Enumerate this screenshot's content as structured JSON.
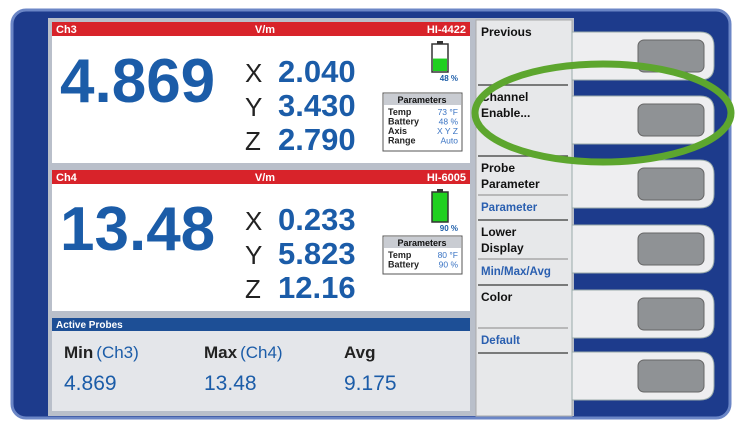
{
  "channels": [
    {
      "name": "Ch3",
      "unit": "V/m",
      "probe": "HI-4422",
      "main": "4.869",
      "axes": [
        {
          "label": "X",
          "value": "2.040"
        },
        {
          "label": "Y",
          "value": "3.430"
        },
        {
          "label": "Z",
          "value": "2.790"
        }
      ],
      "battery": "48 %",
      "parameters": {
        "title": "Parameters",
        "rows": [
          [
            "Temp",
            "73 °F"
          ],
          [
            "Battery",
            "48 %"
          ],
          [
            "Axis",
            "X Y Z"
          ],
          [
            "Range",
            "Auto"
          ]
        ]
      }
    },
    {
      "name": "Ch4",
      "unit": "V/m",
      "probe": "HI-6005",
      "main": "13.48",
      "axes": [
        {
          "label": "X",
          "value": "0.233"
        },
        {
          "label": "Y",
          "value": "5.823"
        },
        {
          "label": "Z",
          "value": "12.16"
        }
      ],
      "battery": "90 %",
      "parameters": {
        "title": "Parameters",
        "rows": [
          [
            "Temp",
            "80 °F"
          ],
          [
            "Battery",
            "90 %"
          ]
        ]
      }
    }
  ],
  "active_probes": {
    "title": "Active Probes",
    "stats": [
      {
        "label": "Min",
        "source": "(Ch3)",
        "value": "4.869"
      },
      {
        "label": "Max",
        "source": "(Ch4)",
        "value": "13.48"
      },
      {
        "label": "Avg",
        "value": "9.175"
      }
    ]
  },
  "menu": [
    {
      "lines": [
        "Previous"
      ]
    },
    {
      "lines": [
        "Channel",
        "Enable..."
      ]
    },
    {
      "lines": [
        "Probe",
        "Parameter"
      ],
      "option": "Parameter"
    },
    {
      "lines": [
        "Lower",
        "Display"
      ],
      "option": "Min/Max/Avg"
    },
    {
      "lines": [
        "Color"
      ],
      "option": "Default"
    }
  ]
}
